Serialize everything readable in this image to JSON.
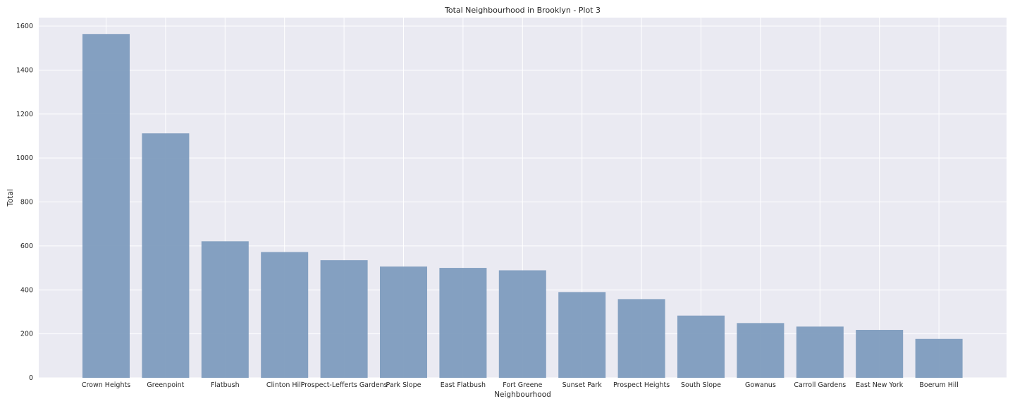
{
  "chart_data": {
    "type": "bar",
    "title": "Total Neighbourhood in Brooklyn - Plot 3",
    "xlabel": "Neighbourhood",
    "ylabel": "Total",
    "categories": [
      "Crown Heights",
      "Greenpoint",
      "Flatbush",
      "Clinton Hill",
      "Prospect-Lefferts Gardens",
      "Park Slope",
      "East Flatbush",
      "Fort Greene",
      "Sunset Park",
      "Prospect Heights",
      "South Slope",
      "Gowanus",
      "Carroll Gardens",
      "East New York",
      "Boerum Hill"
    ],
    "values": [
      1564,
      1112,
      621,
      572,
      535,
      506,
      500,
      489,
      390,
      358,
      283,
      249,
      233,
      218,
      177
    ],
    "ylim": [
      0,
      1600
    ],
    "yticks": [
      0,
      200,
      400,
      600,
      800,
      1000,
      1200,
      1400,
      1600
    ],
    "grid": true,
    "colors": {
      "bar": "#7e9cbe",
      "background": "#eaeaf2",
      "grid": "#ffffff"
    }
  }
}
